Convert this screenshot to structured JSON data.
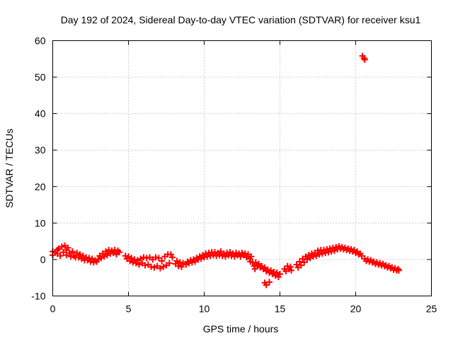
{
  "chart_data": {
    "type": "scatter",
    "title": "Day 192 of 2024, Sidereal Day-to-day VTEC variation (SDTVAR) for receiver ksu1",
    "xlabel": "GPS time / hours",
    "ylabel": "SDTVAR / TECUs",
    "xlim": [
      0,
      25
    ],
    "ylim": [
      -10,
      60
    ],
    "x_ticks": [
      0,
      5,
      10,
      15,
      20,
      25
    ],
    "y_ticks": [
      -10,
      0,
      10,
      20,
      30,
      40,
      50,
      60
    ],
    "grid": true,
    "marker": "plus",
    "point_color": "#ff0000",
    "series": [
      {
        "name": "SDTVAR",
        "points": [
          [
            0.0,
            2.2
          ],
          [
            0.0,
            1.2
          ],
          [
            0.15,
            2.0
          ],
          [
            0.3,
            2.6
          ],
          [
            0.3,
            1.6
          ],
          [
            0.4,
            3.0
          ],
          [
            0.5,
            1.0
          ],
          [
            0.6,
            3.5
          ],
          [
            0.7,
            2.0
          ],
          [
            0.8,
            3.8
          ],
          [
            0.9,
            2.6
          ],
          [
            0.9,
            1.2
          ],
          [
            1.0,
            3.2
          ],
          [
            1.1,
            1.8
          ],
          [
            1.2,
            0.8
          ],
          [
            1.3,
            2.2
          ],
          [
            1.4,
            1.0
          ],
          [
            1.5,
            0.6
          ],
          [
            1.6,
            1.8
          ],
          [
            1.7,
            0.6
          ],
          [
            1.8,
            1.4
          ],
          [
            1.9,
            0.2
          ],
          [
            2.0,
            1.0
          ],
          [
            2.1,
            -0.2
          ],
          [
            2.2,
            0.6
          ],
          [
            2.3,
            -0.2
          ],
          [
            2.4,
            0.4
          ],
          [
            2.5,
            -0.6
          ],
          [
            2.6,
            0.2
          ],
          [
            2.7,
            -0.8
          ],
          [
            2.8,
            -0.2
          ],
          [
            2.9,
            -0.6
          ],
          [
            3.0,
            0.0
          ],
          [
            3.1,
            1.0
          ],
          [
            3.2,
            0.4
          ],
          [
            3.3,
            1.6
          ],
          [
            3.4,
            0.8
          ],
          [
            3.5,
            2.2
          ],
          [
            3.6,
            1.2
          ],
          [
            3.7,
            2.6
          ],
          [
            3.8,
            1.6
          ],
          [
            3.9,
            2.4
          ],
          [
            4.0,
            1.8
          ],
          [
            4.1,
            2.6
          ],
          [
            4.2,
            1.4
          ],
          [
            4.3,
            2.4
          ],
          [
            4.4,
            2.0
          ],
          [
            4.8,
            1.0
          ],
          [
            4.9,
            0.2
          ],
          [
            5.0,
            0.8
          ],
          [
            5.1,
            -0.4
          ],
          [
            5.2,
            0.4
          ],
          [
            5.3,
            -0.8
          ],
          [
            5.4,
            0.0
          ],
          [
            5.5,
            -1.0
          ],
          [
            5.6,
            -0.2
          ],
          [
            5.7,
            -1.4
          ],
          [
            5.8,
            0.2
          ],
          [
            5.9,
            -1.0
          ],
          [
            6.0,
            0.6
          ],
          [
            6.1,
            -1.6
          ],
          [
            6.2,
            0.4
          ],
          [
            6.3,
            -1.4
          ],
          [
            6.4,
            0.6
          ],
          [
            6.5,
            -2.0
          ],
          [
            6.6,
            0.0
          ],
          [
            6.7,
            -2.2
          ],
          [
            6.8,
            0.6
          ],
          [
            6.9,
            -1.8
          ],
          [
            7.0,
            0.4
          ],
          [
            7.1,
            -2.4
          ],
          [
            7.2,
            -0.4
          ],
          [
            7.3,
            -2.0
          ],
          [
            7.4,
            0.8
          ],
          [
            7.5,
            -1.6
          ],
          [
            7.6,
            1.4
          ],
          [
            7.7,
            -1.0
          ],
          [
            7.8,
            1.4
          ],
          [
            7.9,
            0.6
          ],
          [
            8.1,
            -1.2
          ],
          [
            8.2,
            -0.4
          ],
          [
            8.3,
            -1.8
          ],
          [
            8.4,
            -0.8
          ],
          [
            8.5,
            -2.0
          ],
          [
            8.6,
            -1.0
          ],
          [
            8.8,
            -1.4
          ],
          [
            8.9,
            -0.6
          ],
          [
            9.0,
            -1.0
          ],
          [
            9.1,
            -0.2
          ],
          [
            9.2,
            -0.8
          ],
          [
            9.3,
            0.0
          ],
          [
            9.4,
            -0.6
          ],
          [
            9.5,
            0.4
          ],
          [
            9.6,
            0.0
          ],
          [
            9.7,
            0.8
          ],
          [
            9.8,
            0.2
          ],
          [
            9.9,
            1.2
          ],
          [
            10.0,
            0.6
          ],
          [
            10.1,
            1.6
          ],
          [
            10.2,
            0.8
          ],
          [
            10.3,
            1.8
          ],
          [
            10.4,
            1.0
          ],
          [
            10.5,
            2.0
          ],
          [
            10.6,
            1.2
          ],
          [
            10.7,
            2.0
          ],
          [
            10.8,
            1.0
          ],
          [
            10.9,
            1.8
          ],
          [
            11.0,
            1.2
          ],
          [
            11.1,
            2.2
          ],
          [
            11.2,
            1.0
          ],
          [
            11.3,
            1.6
          ],
          [
            11.4,
            0.8
          ],
          [
            11.5,
            1.8
          ],
          [
            11.6,
            1.2
          ],
          [
            11.7,
            2.0
          ],
          [
            11.8,
            1.0
          ],
          [
            11.9,
            1.6
          ],
          [
            12.0,
            0.8
          ],
          [
            12.1,
            1.8
          ],
          [
            12.2,
            1.2
          ],
          [
            12.3,
            1.6
          ],
          [
            12.4,
            0.8
          ],
          [
            12.5,
            1.8
          ],
          [
            12.6,
            1.2
          ],
          [
            12.7,
            1.6
          ],
          [
            12.8,
            0.6
          ],
          [
            12.9,
            1.4
          ],
          [
            13.0,
            0.2
          ],
          [
            13.05,
            -0.6
          ],
          [
            13.1,
            0.8
          ],
          [
            13.2,
            -0.8
          ],
          [
            13.3,
            -1.8
          ],
          [
            13.35,
            -2.6
          ],
          [
            13.4,
            -0.8
          ],
          [
            13.5,
            -1.6
          ],
          [
            13.6,
            -1.2
          ],
          [
            13.7,
            -2.2
          ],
          [
            13.8,
            -1.8
          ],
          [
            13.9,
            -2.6
          ],
          [
            14.0,
            -2.2
          ],
          [
            14.1,
            -3.2
          ],
          [
            14.2,
            -2.8
          ],
          [
            14.3,
            -3.6
          ],
          [
            14.4,
            -3.0
          ],
          [
            14.5,
            -4.0
          ],
          [
            14.6,
            -3.4
          ],
          [
            14.7,
            -4.4
          ],
          [
            14.8,
            -3.6
          ],
          [
            14.9,
            -4.8
          ],
          [
            15.0,
            -4.0
          ],
          [
            14.0,
            -6.4
          ],
          [
            14.1,
            -7.0
          ],
          [
            14.3,
            -6.2
          ],
          [
            15.3,
            -2.6
          ],
          [
            15.4,
            -3.2
          ],
          [
            15.5,
            -1.8
          ],
          [
            15.6,
            -2.6
          ],
          [
            15.7,
            -2.0
          ],
          [
            15.75,
            -3.0
          ],
          [
            16.1,
            -1.4
          ],
          [
            16.2,
            -2.2
          ],
          [
            16.3,
            -0.6
          ],
          [
            16.4,
            -1.6
          ],
          [
            16.5,
            0.2
          ],
          [
            16.6,
            -0.8
          ],
          [
            16.7,
            0.8
          ],
          [
            16.8,
            0.0
          ],
          [
            16.9,
            1.2
          ],
          [
            17.0,
            0.4
          ],
          [
            17.1,
            1.6
          ],
          [
            17.2,
            0.8
          ],
          [
            17.3,
            1.8
          ],
          [
            17.4,
            1.0
          ],
          [
            17.5,
            2.4
          ],
          [
            17.6,
            1.4
          ],
          [
            17.7,
            2.6
          ],
          [
            17.8,
            1.6
          ],
          [
            17.9,
            2.6
          ],
          [
            18.0,
            1.8
          ],
          [
            18.1,
            2.8
          ],
          [
            18.2,
            2.0
          ],
          [
            18.3,
            3.0
          ],
          [
            18.4,
            2.2
          ],
          [
            18.5,
            3.2
          ],
          [
            18.6,
            2.4
          ],
          [
            18.7,
            3.4
          ],
          [
            18.8,
            2.8
          ],
          [
            18.9,
            3.6
          ],
          [
            19.0,
            3.0
          ],
          [
            19.1,
            3.4
          ],
          [
            19.2,
            2.8
          ],
          [
            19.3,
            3.2
          ],
          [
            19.4,
            2.6
          ],
          [
            19.5,
            3.0
          ],
          [
            19.6,
            2.4
          ],
          [
            19.7,
            2.8
          ],
          [
            19.8,
            2.2
          ],
          [
            19.9,
            2.6
          ],
          [
            20.0,
            1.8
          ],
          [
            20.1,
            2.2
          ],
          [
            20.2,
            1.4
          ],
          [
            20.3,
            1.6
          ],
          [
            20.4,
            1.0
          ],
          [
            20.45,
            55.8
          ],
          [
            20.55,
            55.2
          ],
          [
            20.6,
            54.8
          ],
          [
            20.6,
            0.2
          ],
          [
            20.7,
            -0.4
          ],
          [
            20.8,
            0.0
          ],
          [
            20.9,
            -0.6
          ],
          [
            21.0,
            -0.2
          ],
          [
            21.1,
            -0.8
          ],
          [
            21.2,
            -0.6
          ],
          [
            21.3,
            -1.2
          ],
          [
            21.4,
            -0.8
          ],
          [
            21.5,
            -1.4
          ],
          [
            21.6,
            -1.0
          ],
          [
            21.7,
            -1.6
          ],
          [
            21.8,
            -1.2
          ],
          [
            21.9,
            -1.8
          ],
          [
            22.0,
            -1.6
          ],
          [
            22.1,
            -2.2
          ],
          [
            22.2,
            -1.8
          ],
          [
            22.3,
            -2.4
          ],
          [
            22.4,
            -2.2
          ],
          [
            22.5,
            -2.8
          ],
          [
            22.6,
            -2.4
          ],
          [
            22.7,
            -3.0
          ],
          [
            22.8,
            -2.6
          ],
          [
            22.85,
            -3.0
          ]
        ]
      }
    ]
  }
}
